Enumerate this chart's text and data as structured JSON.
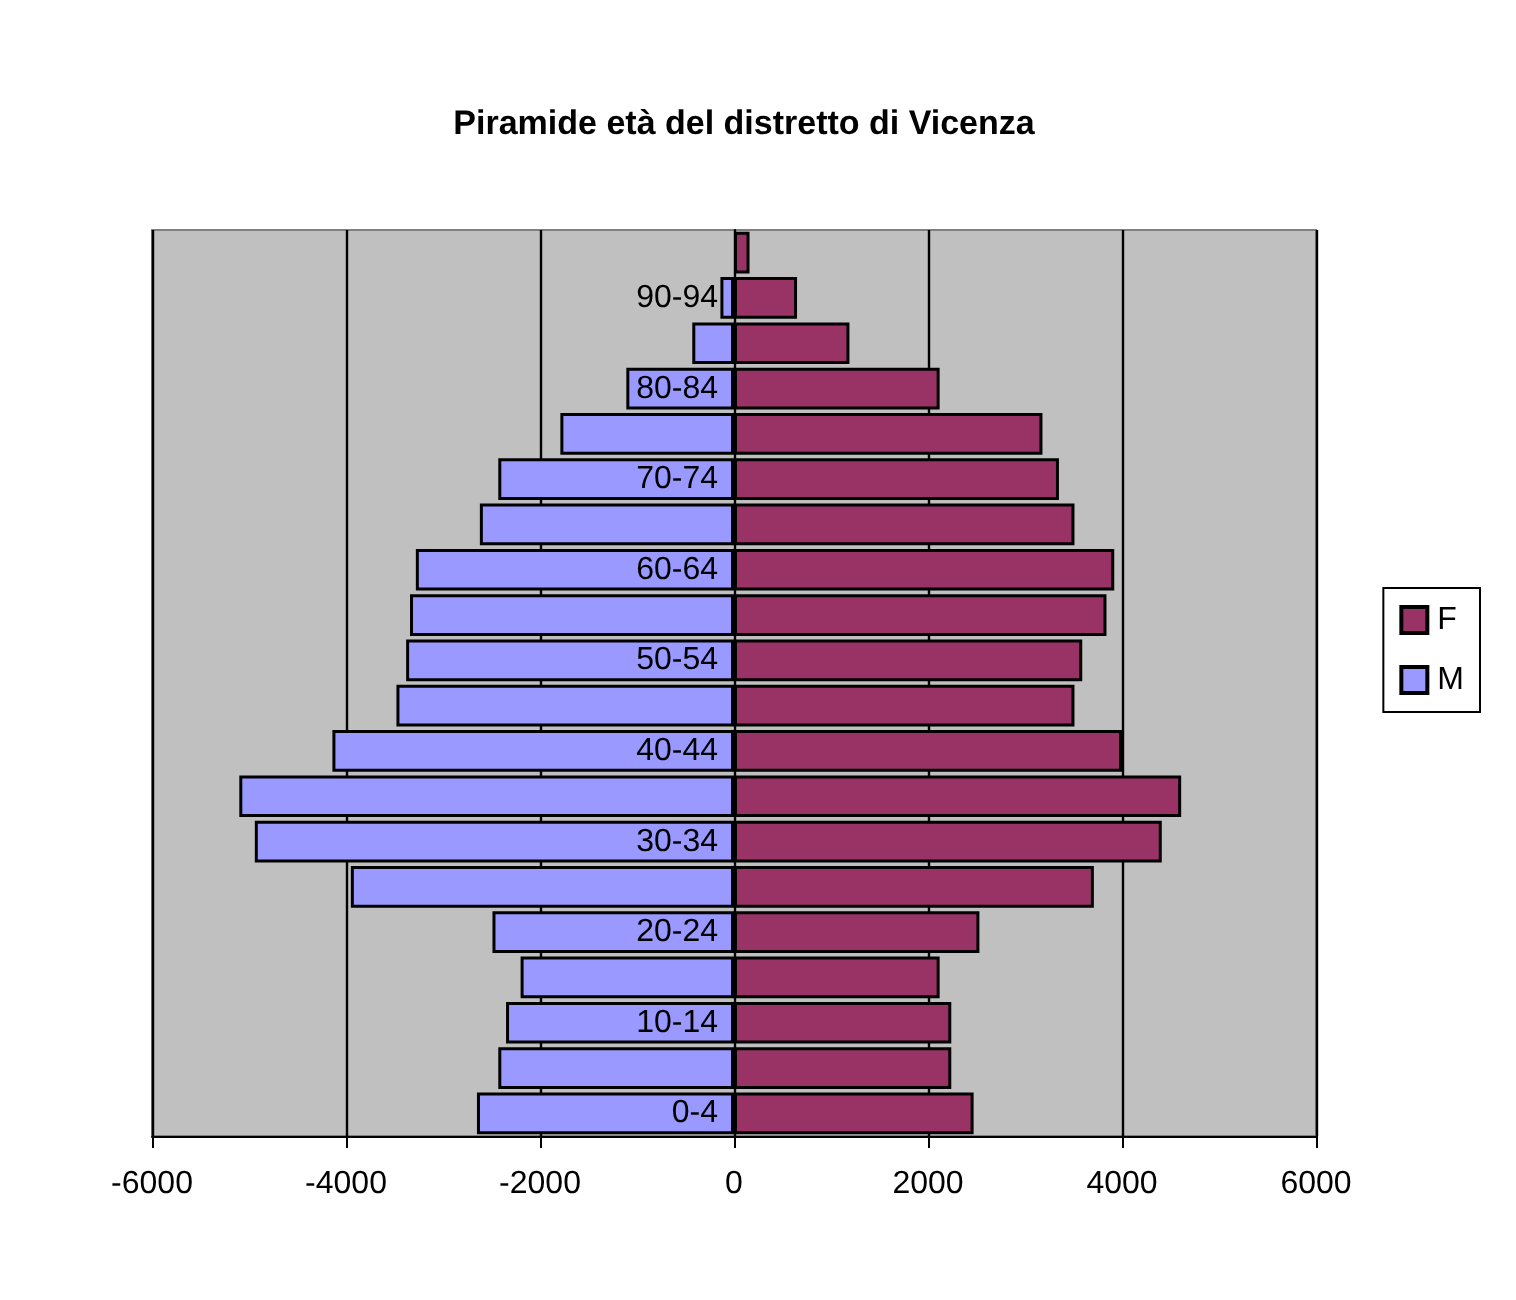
{
  "chart_data": {
    "type": "bar",
    "title": "Piramide età del distretto di Vicenza",
    "orientation": "horizontal",
    "stacked": true,
    "categories": [
      null,
      "90-94",
      null,
      "80-84",
      null,
      "70-74",
      null,
      "60-64",
      null,
      "50-54",
      null,
      "40-44",
      null,
      "30-34",
      null,
      "20-24",
      null,
      "10-14",
      null,
      "0-4"
    ],
    "series": [
      {
        "name": "F",
        "color": "#993366",
        "values": [
          160,
          650,
          1190,
          2120,
          3180,
          3350,
          3510,
          3920,
          3840,
          3590,
          3510,
          4000,
          4610,
          4410,
          3710,
          2530,
          2120,
          2240,
          2240,
          2470
        ]
      },
      {
        "name": "M",
        "color": "#9999ff",
        "values": [
          null,
          -140,
          -430,
          -1110,
          -1790,
          -2430,
          -2620,
          -3280,
          -3340,
          -3380,
          -3480,
          -4140,
          -5100,
          -4940,
          -3950,
          -2490,
          -2200,
          -2350,
          -2430,
          -2650
        ]
      }
    ],
    "xlim": [
      -6000,
      6000
    ],
    "xticks": [
      -6000,
      -4000,
      -2000,
      0,
      2000,
      4000,
      6000
    ],
    "grid": "x",
    "legend": "right"
  }
}
